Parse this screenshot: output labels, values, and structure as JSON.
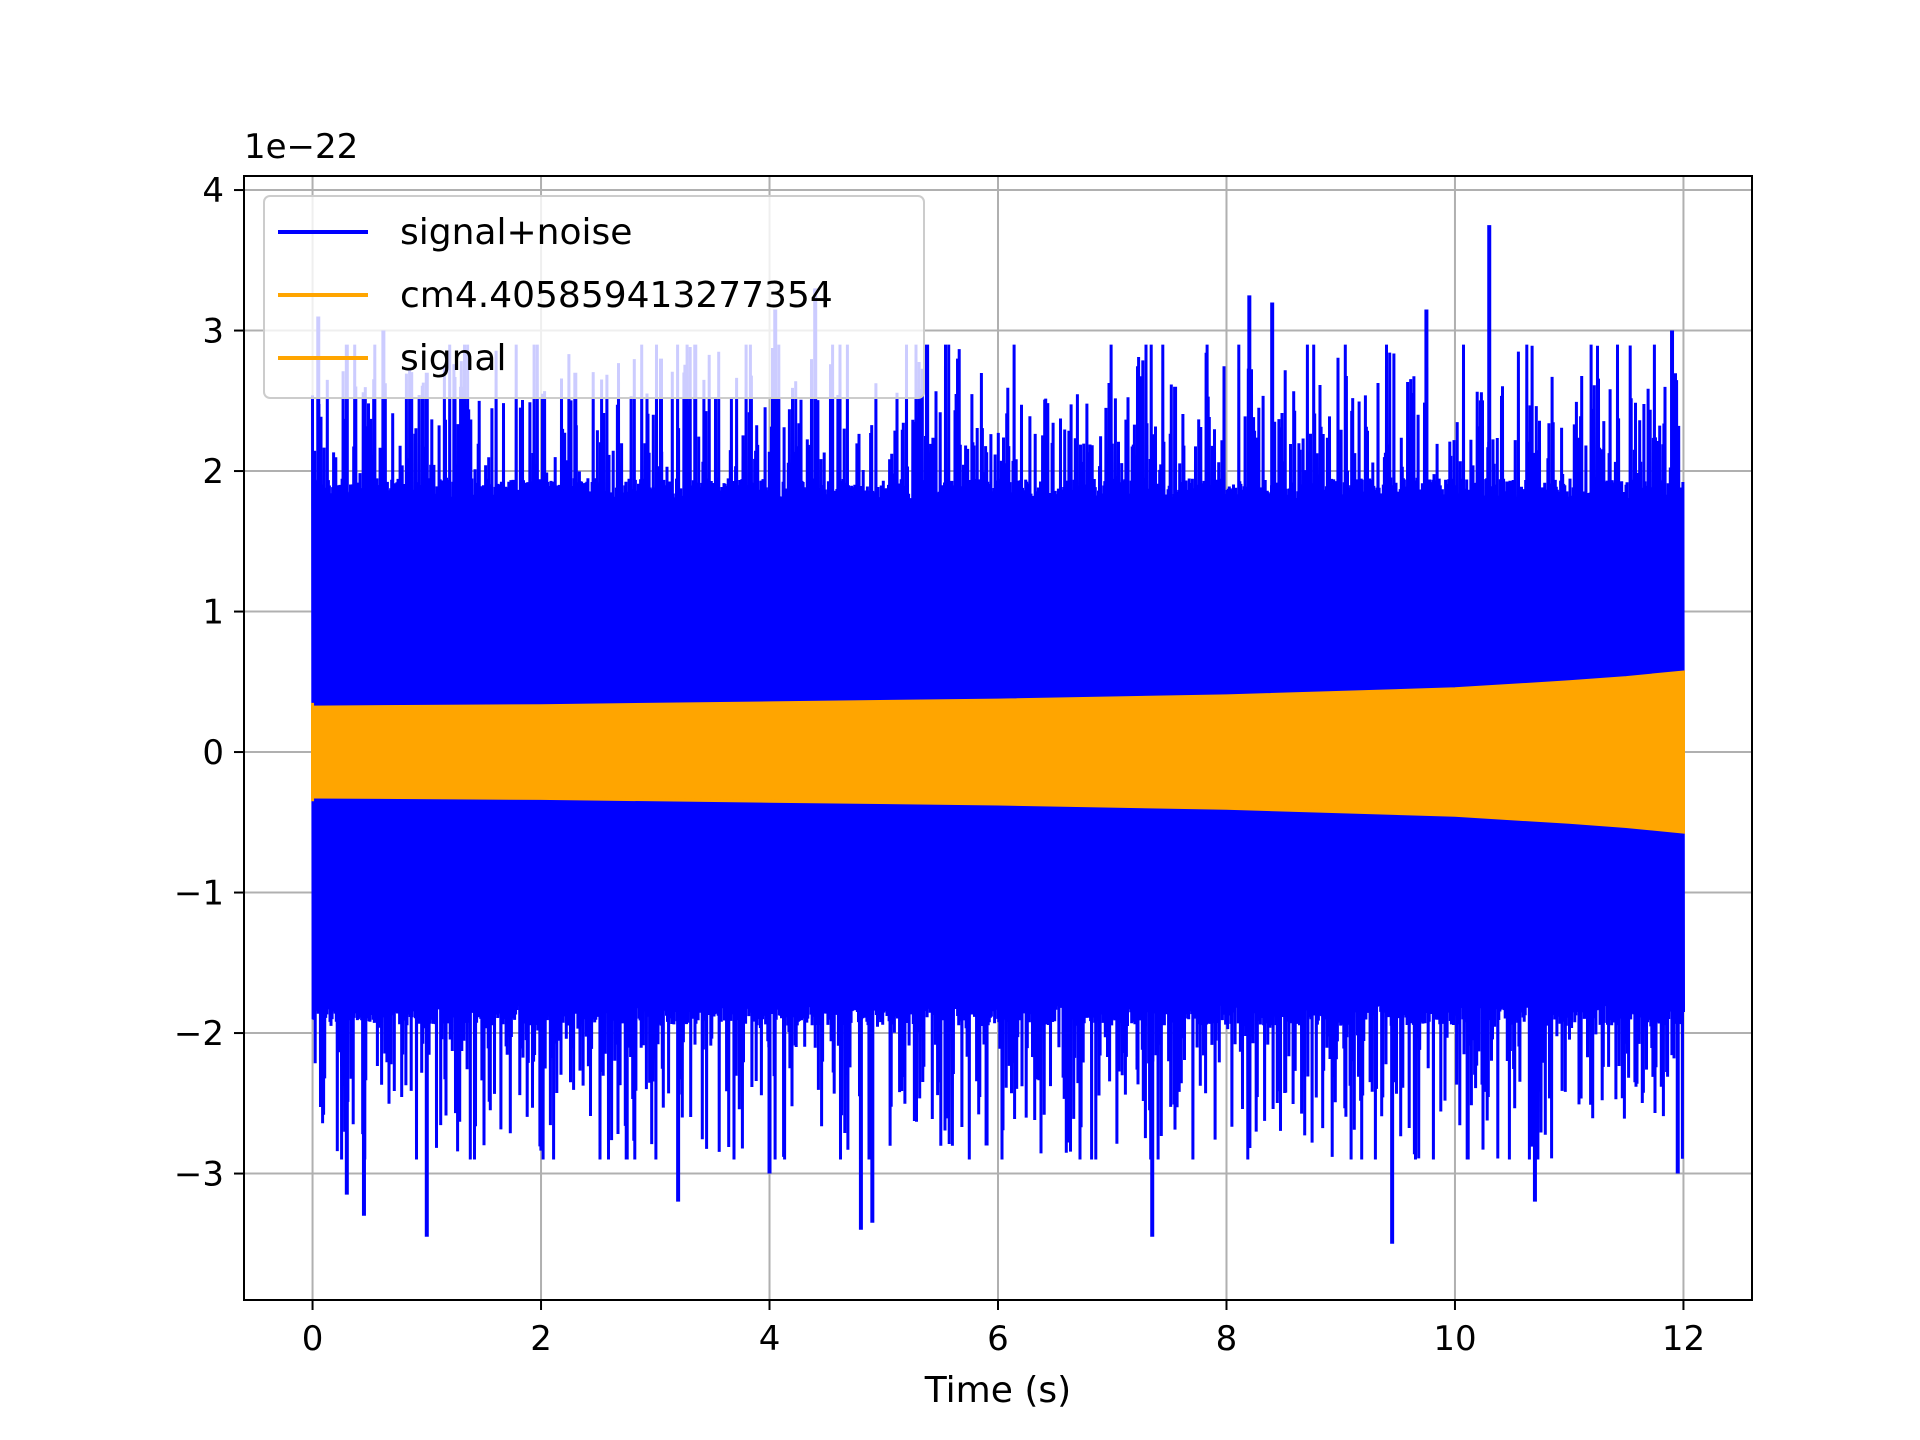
{
  "chart_data": {
    "type": "line",
    "title": "",
    "xlabel": "Time (s)",
    "ylabel": "",
    "y_offset_label": "1e−22",
    "xlim": [
      -0.6,
      12.6
    ],
    "ylim": [
      -3.9,
      4.1
    ],
    "x_ticks": [
      0,
      2,
      4,
      6,
      8,
      10,
      12
    ],
    "x_tick_labels": [
      "0",
      "2",
      "4",
      "6",
      "8",
      "10",
      "12"
    ],
    "y_ticks": [
      -3,
      -2,
      -1,
      0,
      1,
      2,
      3,
      4
    ],
    "y_tick_labels": [
      "−3",
      "−2",
      "−1",
      "0",
      "1",
      "2",
      "3",
      "4"
    ],
    "grid": true,
    "legend_position": "top-left",
    "series": [
      {
        "name": "signal+noise",
        "color": "#0000ff",
        "x_range": [
          0,
          12
        ],
        "baseline_abs_amplitude": [
          1.8,
          1.9
        ],
        "spikes": [
          [
            0.05,
            3.1
          ],
          [
            0.3,
            2.9
          ],
          [
            0.62,
            3.0
          ],
          [
            1.0,
            2.7
          ],
          [
            1.3,
            2.6
          ],
          [
            2.3,
            2.7
          ],
          [
            3.05,
            2.8
          ],
          [
            3.35,
            2.9
          ],
          [
            4.05,
            3.15
          ],
          [
            4.4,
            3.3
          ],
          [
            5.65,
            2.8
          ],
          [
            7.55,
            2.6
          ],
          [
            8.2,
            3.25
          ],
          [
            8.4,
            3.2
          ],
          [
            9.75,
            3.15
          ],
          [
            10.3,
            3.75
          ],
          [
            11.9,
            3.0
          ],
          [
            0.3,
            -3.15
          ],
          [
            0.45,
            -3.3
          ],
          [
            1.0,
            -3.45
          ],
          [
            3.2,
            -3.2
          ],
          [
            4.0,
            -3.0
          ],
          [
            4.8,
            -3.4
          ],
          [
            4.9,
            -3.35
          ],
          [
            7.35,
            -3.45
          ],
          [
            9.45,
            -3.5
          ],
          [
            10.7,
            -3.2
          ],
          [
            11.95,
            -3.0
          ],
          [
            5.9,
            -2.8
          ],
          [
            2.75,
            -2.9
          ]
        ]
      },
      {
        "name": "cm4.405859413277354",
        "color": "#ffa500",
        "x_range": [
          0,
          12
        ],
        "envelope": [
          [
            0,
            0.32
          ],
          [
            2,
            0.33
          ],
          [
            4,
            0.35
          ],
          [
            6,
            0.37
          ],
          [
            8,
            0.4
          ],
          [
            10,
            0.45
          ],
          [
            11,
            0.5
          ],
          [
            11.5,
            0.53
          ],
          [
            12,
            0.57
          ]
        ]
      },
      {
        "name": "signal",
        "color": "#ffa500",
        "x_range": [
          0,
          12
        ],
        "envelope": [
          [
            0,
            0.32
          ],
          [
            2,
            0.33
          ],
          [
            4,
            0.35
          ],
          [
            6,
            0.37
          ],
          [
            8,
            0.4
          ],
          [
            10,
            0.45
          ],
          [
            11,
            0.5
          ],
          [
            11.5,
            0.53
          ],
          [
            12,
            0.57
          ]
        ]
      }
    ]
  }
}
